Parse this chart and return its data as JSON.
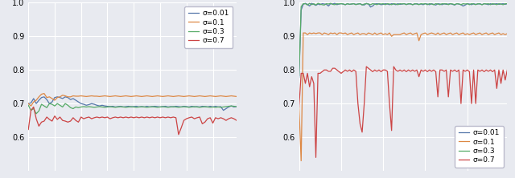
{
  "fig_width": 6.4,
  "fig_height": 2.22,
  "dpi": 100,
  "background_color": "#e8eaf0",
  "axes_background": "#e8eaf0",
  "colors": {
    "sigma_001": "#5577aa",
    "sigma_01": "#dd8844",
    "sigma_03": "#55aa66",
    "sigma_07": "#cc4444"
  },
  "legend_labels": [
    "σ=0.01",
    "σ=0.1",
    "σ=0.3",
    "σ=0.7"
  ],
  "left_ylim": [
    0.5,
    1.0
  ],
  "right_ylim": [
    0.5,
    1.0
  ],
  "left_yticks": [
    0.6,
    0.7,
    0.8,
    0.9,
    1.0
  ],
  "right_yticks": [
    0.6,
    0.7,
    0.8,
    0.9,
    1.0
  ],
  "grid_color": "#ffffff",
  "spine_color": "#cccccc"
}
